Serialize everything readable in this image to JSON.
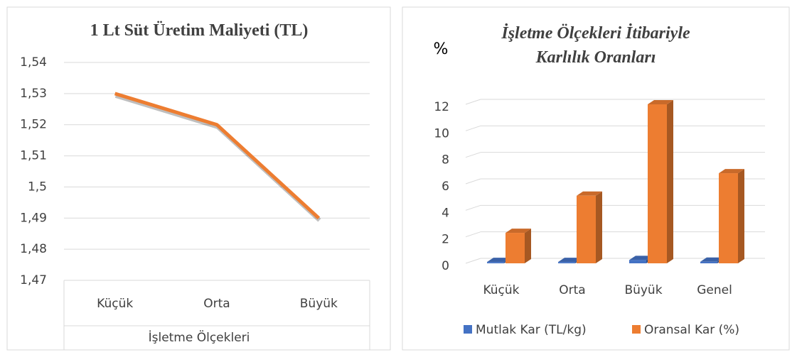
{
  "chart_data": [
    {
      "type": "line",
      "title": "1 Lt Süt Üretim Maliyeti (TL)",
      "x_label": "İşletme Ölçekleri",
      "categories": [
        "Küçük",
        "Orta",
        "Büyük"
      ],
      "values": [
        1.53,
        1.52,
        1.49
      ],
      "color": "#ed7d31",
      "ylim": [
        1.47,
        1.54
      ],
      "yticks": [
        {
          "value": 1.47,
          "label": "1,47"
        },
        {
          "value": 1.48,
          "label": "1,48"
        },
        {
          "value": 1.49,
          "label": "1,49"
        },
        {
          "value": 1.5,
          "label": "1,5"
        },
        {
          "value": 1.51,
          "label": "1,51"
        },
        {
          "value": 1.52,
          "label": "1,52"
        },
        {
          "value": 1.53,
          "label": "1,53"
        },
        {
          "value": 1.54,
          "label": "1,54"
        }
      ],
      "grid": true
    },
    {
      "type": "bar3d",
      "title": "İşletme Ölçekleri İtibariyle Karlılık Oranları",
      "y_label": "%",
      "categories": [
        "Küçük",
        "Orta",
        "Büyük",
        "Genel"
      ],
      "series": [
        {
          "name": "Mutlak Kar (TL/kg)",
          "color": "#4472c4",
          "values": [
            0.1,
            0.1,
            0.25,
            0.12
          ]
        },
        {
          "name": "Oransal Kar (%)",
          "color": "#ed7d31",
          "values": [
            2.3,
            5.1,
            12,
            6.8
          ]
        }
      ],
      "ylim": [
        0,
        12
      ],
      "yticks": [
        0,
        2,
        4,
        6,
        8,
        10,
        12
      ],
      "grid": true,
      "legend": "bottom"
    }
  ]
}
